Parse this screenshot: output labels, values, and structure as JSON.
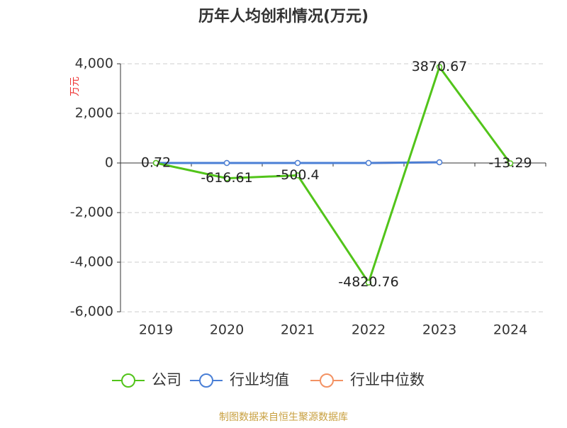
{
  "chart_data": {
    "type": "line",
    "title": "历年人均创利情况(万元)",
    "y_label": "万元",
    "categories": [
      "2019",
      "2020",
      "2021",
      "2022",
      "2023",
      "2024"
    ],
    "series": [
      {
        "name": "公司",
        "color": "#52c41a",
        "values": [
          0.72,
          -616.61,
          -500.4,
          -4820.76,
          3870.67,
          -13.29
        ]
      },
      {
        "name": "行业均值",
        "color": "#4a7fd6",
        "values": [
          0,
          0,
          0,
          0,
          30,
          null
        ]
      },
      {
        "name": "行业中位数",
        "color": "#f39263",
        "values": [
          0,
          0,
          0,
          0,
          30,
          null
        ]
      }
    ],
    "ylim": [
      -6000,
      4000
    ],
    "yticks": [
      {
        "value": -6000,
        "label": "-6,000"
      },
      {
        "value": -4000,
        "label": "-4,000"
      },
      {
        "value": -2000,
        "label": "-2,000"
      },
      0,
      {
        "value": 2000,
        "label": "2,000"
      },
      {
        "value": 4000,
        "label": "4,000"
      }
    ],
    "grid": true,
    "source": "制图数据来自恒生聚源数据库"
  }
}
